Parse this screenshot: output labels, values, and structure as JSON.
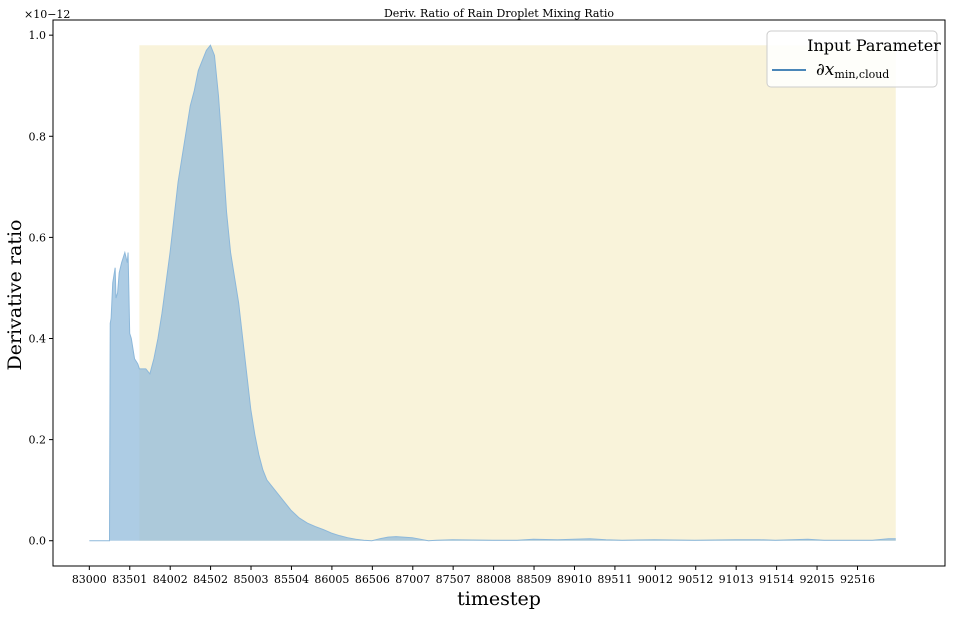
{
  "chart_data": {
    "type": "area",
    "title": "Deriv. Ratio of Rain Droplet Mixing Ratio",
    "xlabel": "timestep",
    "ylabel": "Derivative ratio",
    "y_scale_label": "×10−12",
    "xlim": [
      82550,
      93600
    ],
    "ylim": [
      -0.05,
      1.03
    ],
    "x_ticks": [
      83000,
      83501,
      84002,
      84502,
      85003,
      85504,
      86005,
      86506,
      87007,
      87507,
      88008,
      88509,
      89010,
      89511,
      90012,
      90512,
      91013,
      91514,
      92015,
      92516
    ],
    "y_ticks": [
      0.0,
      0.2,
      0.4,
      0.6,
      0.8,
      1.0
    ],
    "y_tick_labels": [
      "0.0",
      "0.2",
      "0.4",
      "0.6",
      "0.8",
      "1.0"
    ],
    "grid": false,
    "legend": {
      "position": "top-right",
      "title": "Input Parameter",
      "entries": [
        {
          "name": "∂x",
          "subscript": "min,cloud",
          "color": "#4a86b8"
        }
      ]
    },
    "highlight_region": {
      "x_start": 83620,
      "x_end": 92990,
      "y_top": 0.98,
      "color": "#f9f3da"
    },
    "series": [
      {
        "name": "∂x min,cloud",
        "color": "#8db8da",
        "x": [
          83000,
          83250,
          83259,
          83270,
          83290,
          83320,
          83330,
          83350,
          83370,
          83400,
          83420,
          83440,
          83470,
          83480,
          83500,
          83520,
          83560,
          83600,
          83620,
          83650,
          83700,
          83750,
          83800,
          83850,
          83900,
          83950,
          84000,
          84050,
          84100,
          84150,
          84200,
          84250,
          84300,
          84350,
          84400,
          84450,
          84500,
          84550,
          84600,
          84650,
          84700,
          84750,
          84800,
          84850,
          84900,
          84950,
          85000,
          85050,
          85100,
          85150,
          85200,
          85300,
          85400,
          85500,
          85600,
          85700,
          85800,
          85900,
          86000,
          86100,
          86200,
          86300,
          86400,
          86500,
          86600,
          86700,
          86800,
          87000,
          87200,
          87300,
          87500,
          88000,
          88300,
          88500,
          88800,
          89000,
          89200,
          89400,
          89600,
          90000,
          90500,
          91000,
          91300,
          91500,
          91700,
          91900,
          92100,
          92400,
          92700,
          92900,
          92990
        ],
        "y": [
          0.0,
          0.0,
          0.43,
          0.44,
          0.51,
          0.54,
          0.48,
          0.49,
          0.53,
          0.55,
          0.56,
          0.57,
          0.55,
          0.57,
          0.41,
          0.4,
          0.36,
          0.35,
          0.34,
          0.34,
          0.34,
          0.33,
          0.36,
          0.4,
          0.45,
          0.51,
          0.57,
          0.64,
          0.71,
          0.76,
          0.81,
          0.86,
          0.89,
          0.93,
          0.95,
          0.97,
          0.98,
          0.96,
          0.88,
          0.77,
          0.65,
          0.57,
          0.52,
          0.47,
          0.4,
          0.33,
          0.26,
          0.21,
          0.17,
          0.14,
          0.12,
          0.1,
          0.08,
          0.06,
          0.045,
          0.035,
          0.028,
          0.022,
          0.015,
          0.01,
          0.006,
          0.003,
          0.001,
          0.0,
          0.004,
          0.007,
          0.008,
          0.006,
          0.0,
          0.001,
          0.002,
          0.001,
          0.001,
          0.003,
          0.002,
          0.003,
          0.004,
          0.002,
          0.001,
          0.002,
          0.001,
          0.002,
          0.002,
          0.001,
          0.002,
          0.003,
          0.001,
          0.001,
          0.001,
          0.004,
          0.004
        ]
      }
    ]
  }
}
